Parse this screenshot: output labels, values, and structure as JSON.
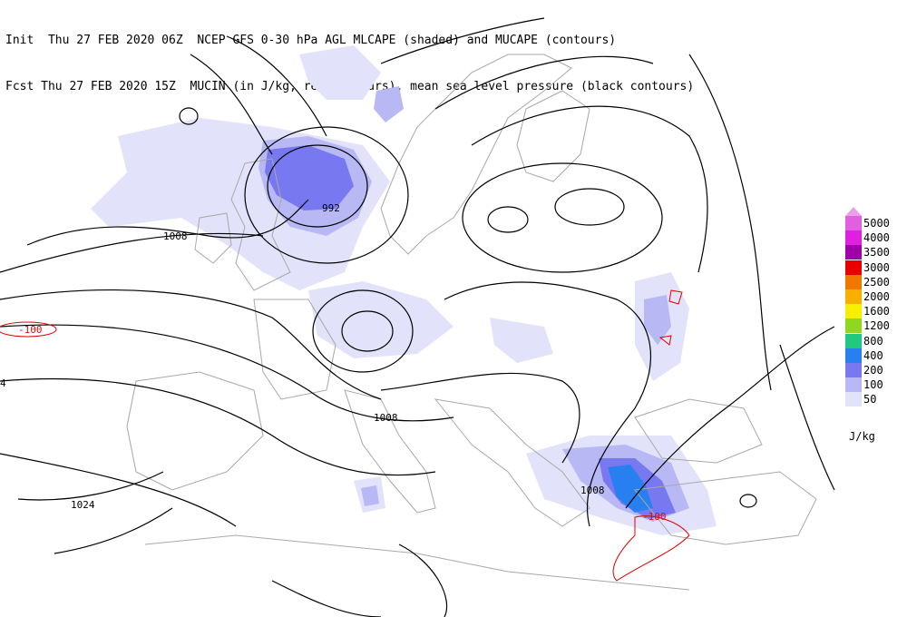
{
  "header": {
    "line1": "Init  Thu 27 FEB 2020 06Z  NCEP GFS 0-30 hPa AGL MLCAPE (shaded) and MUCAPE (contours)",
    "line2": "Fcst Thu 27 FEB 2020 15Z  MUCIN (in J/kg, red contours), mean sea level pressure (black contours)"
  },
  "pressure_labels": [
    "992",
    "1008",
    "1008",
    "1008",
    "1024",
    "4"
  ],
  "cin_labels": [
    "-100",
    "-100"
  ],
  "legend": {
    "units": "J/kg",
    "levels": [
      {
        "value": "5000",
        "color": "#e060e0"
      },
      {
        "value": "4000",
        "color": "#e020e0"
      },
      {
        "value": "3500",
        "color": "#a000a8"
      },
      {
        "value": "3000",
        "color": "#e80000"
      },
      {
        "value": "2500",
        "color": "#f07800"
      },
      {
        "value": "2000",
        "color": "#f8b000"
      },
      {
        "value": "1600",
        "color": "#f8f000"
      },
      {
        "value": "1200",
        "color": "#90d820"
      },
      {
        "value": "800",
        "color": "#20c880"
      },
      {
        "value": "400",
        "color": "#2880f0"
      },
      {
        "value": "200",
        "color": "#7878f0"
      },
      {
        "value": "100",
        "color": "#b8b8f4"
      },
      {
        "value": "50",
        "color": "#e2e2fa"
      }
    ]
  },
  "colors": {
    "coastline": "#a8a8a8",
    "isobar": "#000000",
    "cin_contour": "#e00000",
    "cape_light": "#e2e2fa",
    "cape_mid": "#b8b8f4",
    "cape_strong": "#7878f0",
    "cape_peak": "#2880f0"
  }
}
